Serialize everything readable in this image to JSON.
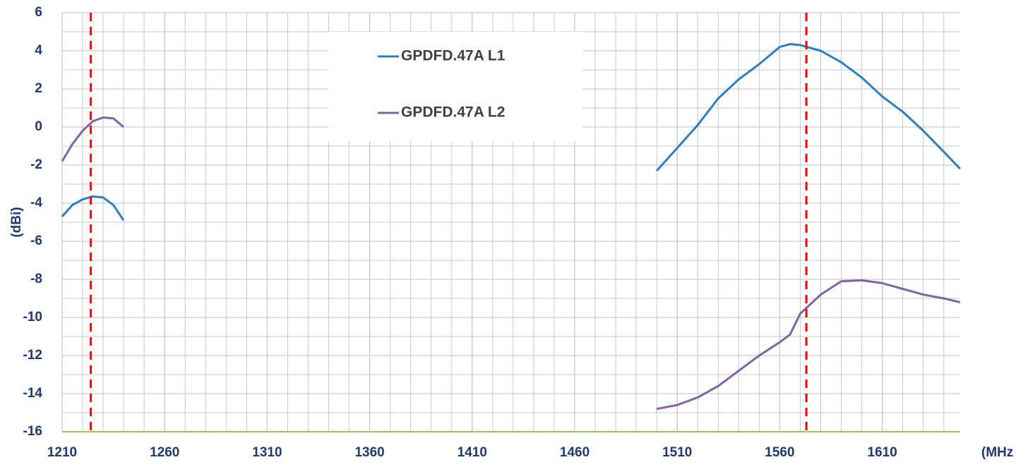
{
  "chart_data": {
    "type": "line",
    "xlabel": "(MHz",
    "ylabel": "(dBi)",
    "x": [
      1210,
      1215,
      1220,
      1225,
      1230,
      1235,
      1240,
      1245,
      1500,
      1510,
      1520,
      1530,
      1540,
      1550,
      1560,
      1565,
      1570,
      1580,
      1590,
      1600,
      1610,
      1620,
      1630,
      1640,
      1648
    ],
    "series": [
      {
        "name": "GPDFD.47A L1",
        "color": "#2a7fc4",
        "values": [
          -4.7,
          -4.1,
          -3.8,
          -3.65,
          -3.7,
          -4.1,
          -4.9,
          null,
          -2.3,
          -1.1,
          0.1,
          1.5,
          2.5,
          3.3,
          4.2,
          4.35,
          4.3,
          4.0,
          3.4,
          2.6,
          1.6,
          0.8,
          -0.2,
          -1.3,
          -2.2
        ]
      },
      {
        "name": "GPDFD.47A L2",
        "color": "#8064a2",
        "values": [
          -1.8,
          -0.9,
          -0.2,
          0.3,
          0.5,
          0.45,
          0.0,
          null,
          -14.8,
          -14.6,
          -14.2,
          -13.6,
          -12.8,
          -12.0,
          -11.3,
          -10.9,
          -9.8,
          -8.8,
          -8.1,
          -8.05,
          -8.2,
          -8.5,
          -8.8,
          -9.0,
          -9.2
        ]
      }
    ],
    "markers": [
      {
        "x": 1224,
        "color": "#ff0000"
      },
      {
        "x": 1573,
        "color": "#ff0000"
      }
    ],
    "xlim": [
      1210,
      1648
    ],
    "ylim": [
      -16,
      6
    ],
    "xticks": [
      1210,
      1260,
      1310,
      1360,
      1410,
      1460,
      1510,
      1560,
      1610
    ],
    "yticks": [
      -16,
      -14,
      -12,
      -10,
      -8,
      -6,
      -4,
      -2,
      0,
      2,
      4,
      6
    ],
    "grid": true,
    "grid_x_step": 10,
    "grid_y_step": 1,
    "legend": "top-center"
  }
}
